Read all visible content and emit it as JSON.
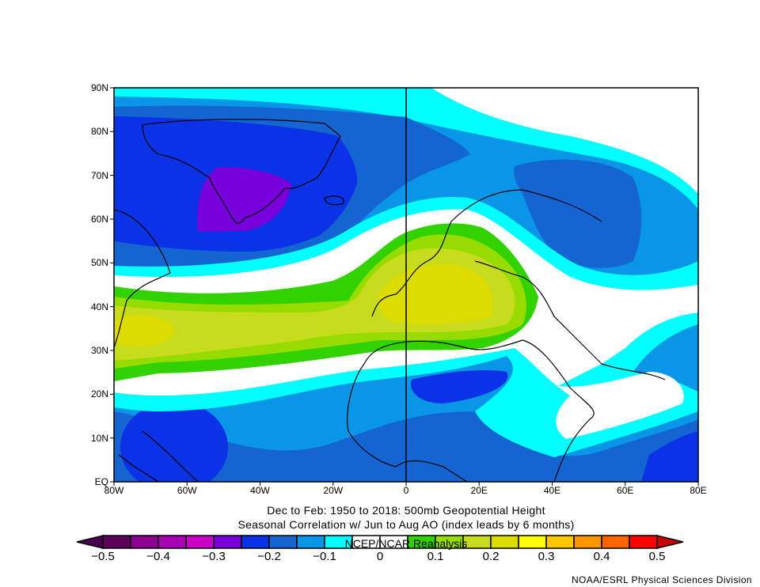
{
  "title": {
    "line1": "Dec to Feb: 1950 to 2018: 500mb Geopotential Height",
    "line2": "Seasonal Correlation w/ Jun to Aug AO (index leads by 6 months)"
  },
  "axes": {
    "lat_labels": [
      "90N",
      "80N",
      "70N",
      "60N",
      "50N",
      "40N",
      "30N",
      "20N",
      "10N",
      "EQ"
    ],
    "lon_labels": [
      "80W",
      "60W",
      "40W",
      "20W",
      "0",
      "20E",
      "40E",
      "60E",
      "80E"
    ]
  },
  "colorbar": {
    "overlay_text": "NCEP/NCAR Reanalysis",
    "tick_labels": [
      "−0.5",
      "−0.4",
      "−0.3",
      "−0.2",
      "−0.1",
      "0",
      "0.1",
      "0.2",
      "0.3",
      "0.4",
      "0.5"
    ],
    "below_color": "#4a0050",
    "above_color": "#c80000",
    "colors": [
      "#5a0058",
      "#8c0090",
      "#a800b4",
      "#c800c8",
      "#7800dc",
      "#0a32e6",
      "#1464d2",
      "#0a96e6",
      "#00ffff",
      "#ffffff",
      "#ffffff",
      "#32d200",
      "#96dc00",
      "#c8dc1e",
      "#dcdc00",
      "#ffff00",
      "#ffc800",
      "#ff9600",
      "#ff6400",
      "#ff0000"
    ]
  },
  "credit": "NOAA/ESRL Physical Sciences Division"
}
